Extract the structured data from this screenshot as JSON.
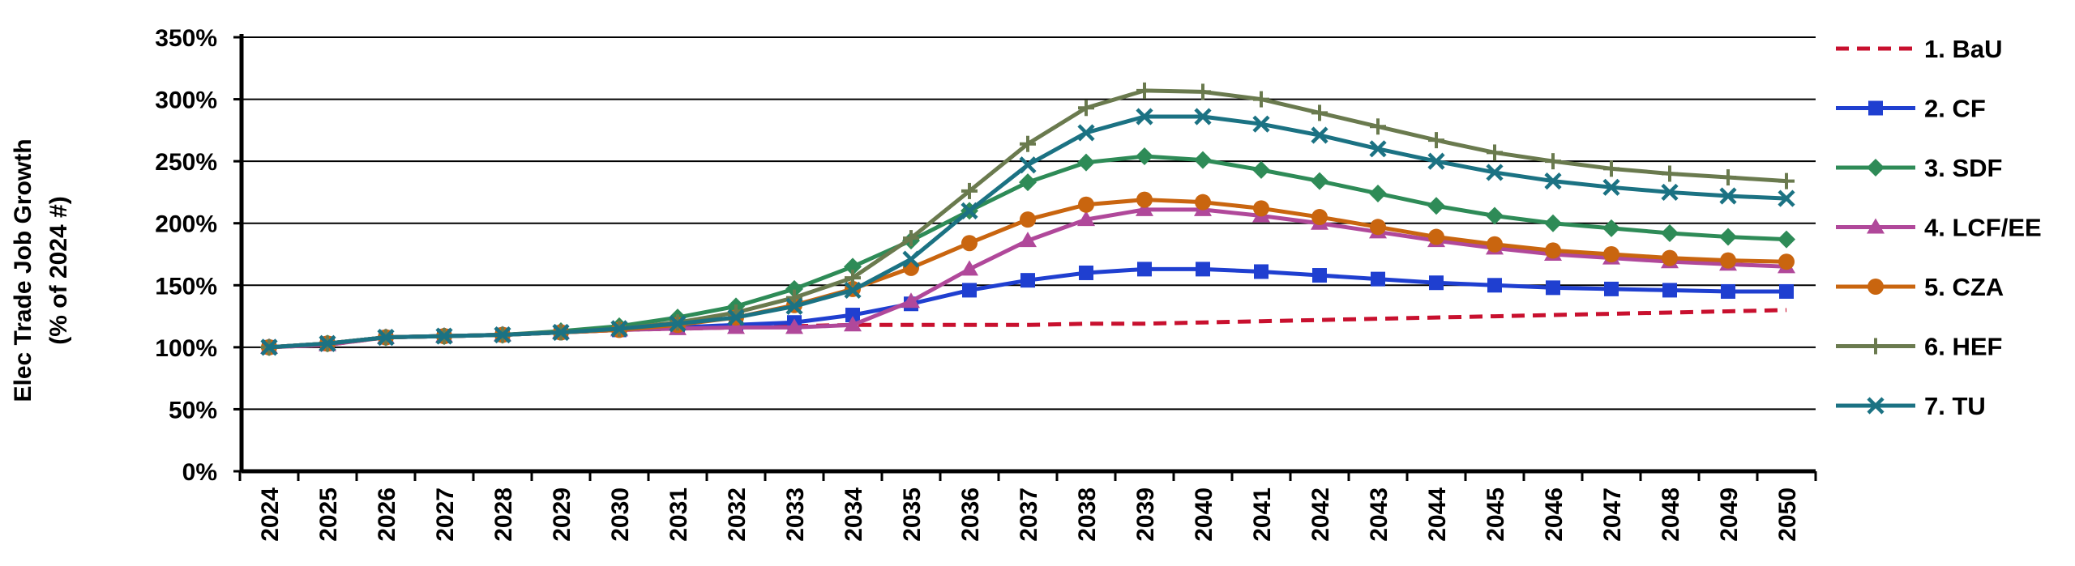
{
  "chart_data": {
    "type": "line",
    "title": "",
    "ylabel_lines": [
      "Elec Trade Job Growth",
      "(% of 2024 #)"
    ],
    "xlabel": "",
    "ylim": [
      0,
      350
    ],
    "yticks": [
      0,
      50,
      100,
      150,
      200,
      250,
      300,
      350
    ],
    "ytick_labels": [
      "0%",
      "50%",
      "100%",
      "150%",
      "200%",
      "250%",
      "300%",
      "350%"
    ],
    "grid": "horizontal",
    "legend_position": "right",
    "x": [
      "2024",
      "2025",
      "2026",
      "2027",
      "2028",
      "2029",
      "2030",
      "2031",
      "2032",
      "2033",
      "2034",
      "2035",
      "2036",
      "2037",
      "2038",
      "2039",
      "2040",
      "2041",
      "2042",
      "2043",
      "2044",
      "2045",
      "2046",
      "2047",
      "2048",
      "2049",
      "2050"
    ],
    "series": [
      {
        "name": "1. BaU",
        "color": "#c8102e",
        "marker": "none",
        "dash": true,
        "values": [
          100,
          102,
          108,
          109,
          110,
          112,
          114,
          115,
          116,
          117,
          118,
          118,
          118,
          118,
          119,
          119,
          120,
          121,
          122,
          123,
          124,
          125,
          126,
          127,
          128,
          129,
          130
        ]
      },
      {
        "name": "2. CF",
        "color": "#1f3fd0",
        "marker": "square",
        "dash": false,
        "values": [
          100,
          103,
          108,
          109,
          110,
          112,
          114,
          116,
          118,
          120,
          126,
          135,
          146,
          154,
          160,
          163,
          163,
          161,
          158,
          155,
          152,
          150,
          148,
          147,
          146,
          145,
          145
        ]
      },
      {
        "name": "3. SDF",
        "color": "#2e8b57",
        "marker": "diamond",
        "dash": false,
        "values": [
          100,
          103,
          108,
          109,
          110,
          113,
          117,
          124,
          133,
          147,
          165,
          186,
          210,
          233,
          249,
          254,
          251,
          243,
          234,
          224,
          214,
          206,
          200,
          196,
          192,
          189,
          187
        ]
      },
      {
        "name": "4. LCF/EE",
        "color": "#b0489a",
        "marker": "triangle",
        "dash": false,
        "values": [
          100,
          102,
          108,
          109,
          110,
          112,
          114,
          115,
          116,
          116,
          118,
          137,
          163,
          186,
          203,
          211,
          211,
          206,
          200,
          193,
          186,
          180,
          175,
          172,
          169,
          167,
          165
        ]
      },
      {
        "name": "5. CZA",
        "color": "#c9650f",
        "marker": "circle",
        "dash": false,
        "values": [
          100,
          103,
          108,
          109,
          110,
          112,
          114,
          118,
          124,
          134,
          147,
          164,
          184,
          203,
          215,
          219,
          217,
          212,
          205,
          197,
          189,
          183,
          178,
          175,
          172,
          170,
          169
        ]
      },
      {
        "name": "6. HEF",
        "color": "#6a7a4e",
        "marker": "plus",
        "dash": false,
        "values": [
          100,
          103,
          108,
          109,
          110,
          112,
          115,
          120,
          128,
          140,
          156,
          188,
          226,
          264,
          293,
          307,
          306,
          300,
          289,
          278,
          267,
          257,
          250,
          244,
          240,
          237,
          234
        ]
      },
      {
        "name": "7. TU",
        "color": "#1b7283",
        "marker": "x",
        "dash": false,
        "values": [
          100,
          103,
          108,
          109,
          110,
          112,
          115,
          119,
          124,
          133,
          146,
          171,
          210,
          247,
          273,
          286,
          286,
          280,
          271,
          260,
          250,
          241,
          234,
          229,
          225,
          222,
          220
        ]
      }
    ]
  }
}
